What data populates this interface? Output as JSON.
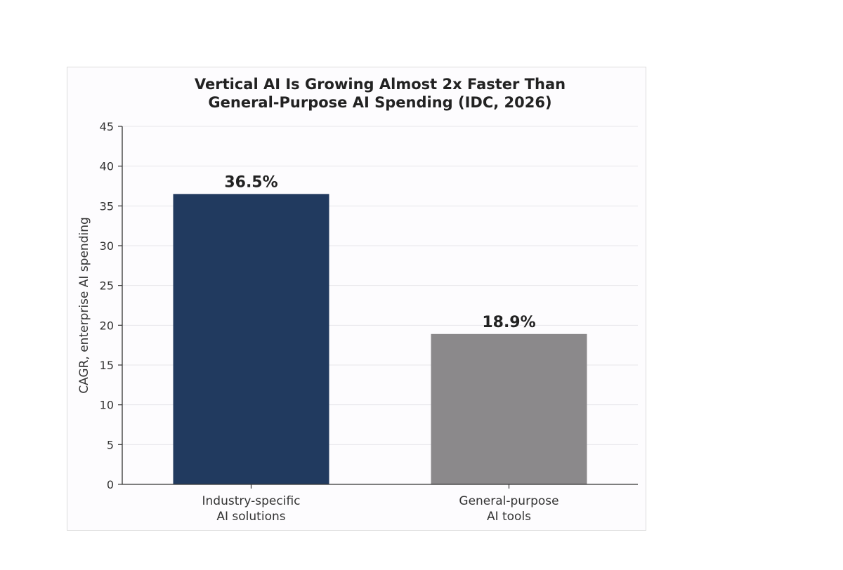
{
  "chart_data": {
    "type": "bar",
    "title_line1": "Vertical AI Is Growing Almost 2x Faster Than",
    "title_line2": "General-Purpose AI Spending (IDC, 2026)",
    "title": "Vertical AI Is Growing Almost 2x Faster Than General-Purpose AI Spending (IDC, 2026)",
    "ylabel": "CAGR, enterprise AI spending",
    "xlabel": "",
    "ylim": [
      0,
      45
    ],
    "yticks": [
      0,
      5,
      10,
      15,
      20,
      25,
      30,
      35,
      40,
      45
    ],
    "grid": true,
    "categories": [
      [
        "Industry-specific",
        "AI solutions"
      ],
      [
        "General-purpose",
        "AI tools"
      ]
    ],
    "values": [
      36.5,
      18.9
    ],
    "data_labels": [
      "36.5%",
      "18.9%"
    ],
    "colors": [
      "#213a5f",
      "#8b898b"
    ],
    "axis_color": "#333333",
    "grid_color": "#e6e6ea"
  }
}
